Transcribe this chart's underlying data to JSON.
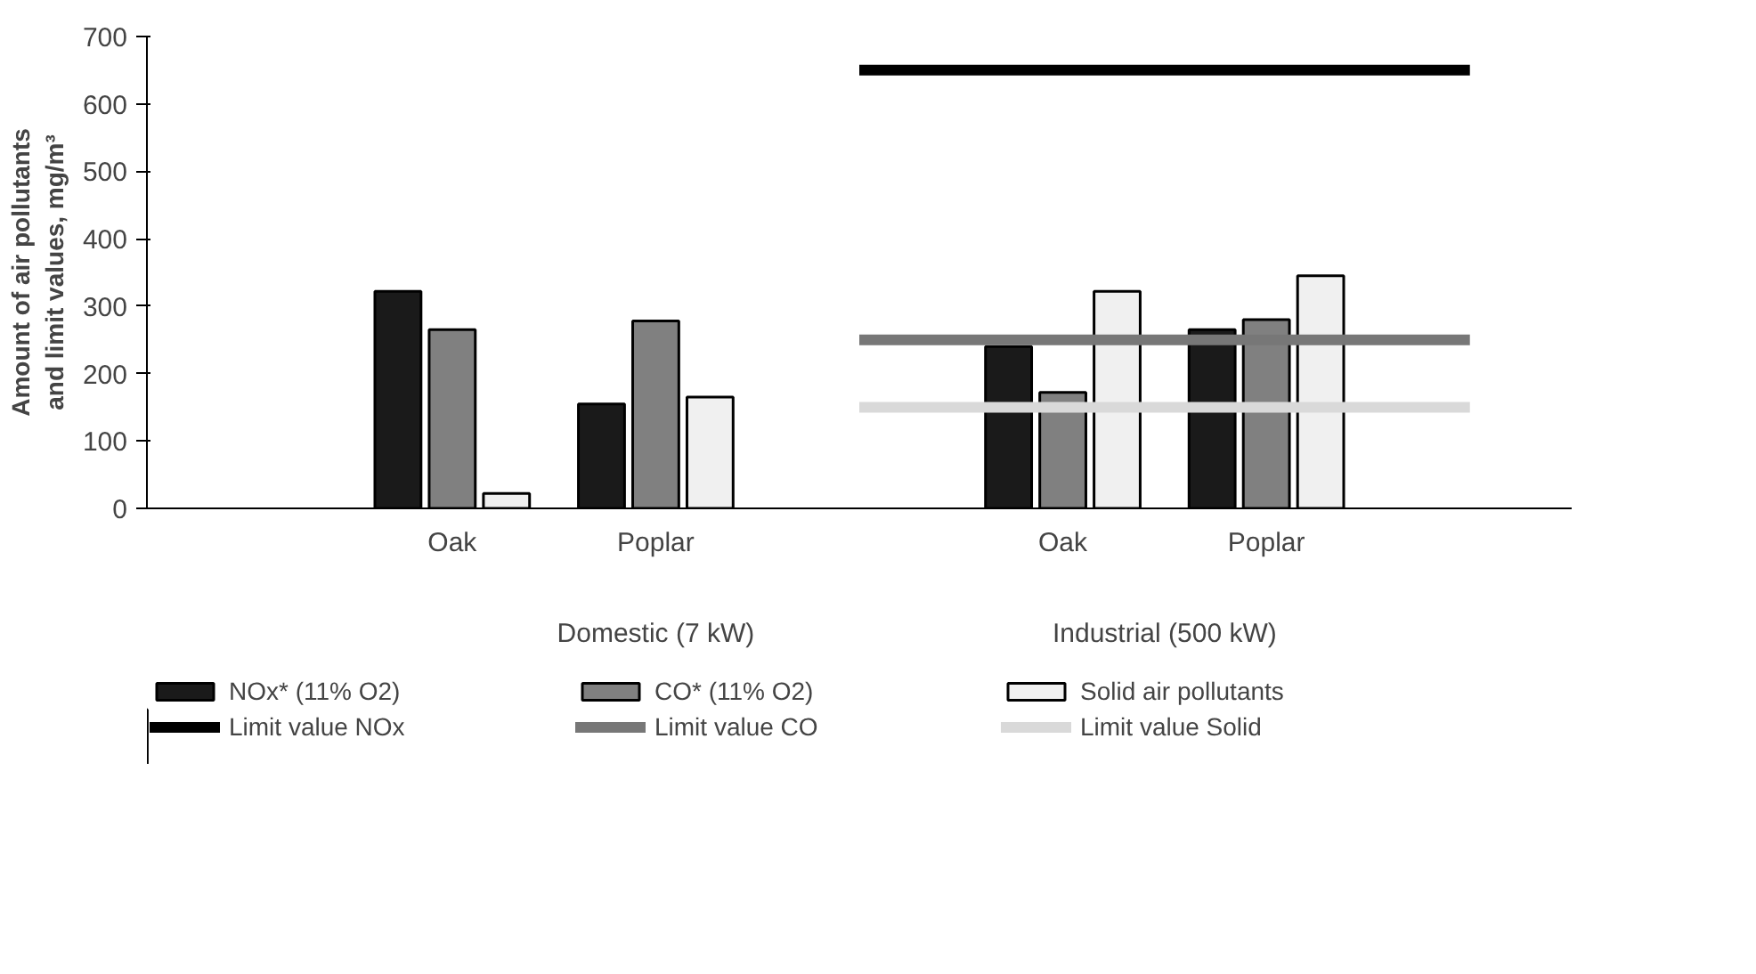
{
  "chart_data": {
    "type": "bar",
    "ylabel": "Amount of air pollutants and limit values, mg/m³",
    "categories": [
      null,
      "Oak",
      "Poplar",
      null,
      "Oak",
      "Poplar",
      null
    ],
    "series": [
      {
        "name": "NOx* (11% O2)",
        "color": "#1a1a1a",
        "values": [
          null,
          322,
          155,
          null,
          240,
          265,
          null
        ]
      },
      {
        "name": "CO* (11% O2)",
        "color": "#808080",
        "values": [
          null,
          265,
          278,
          null,
          172,
          280,
          null
        ]
      },
      {
        "name": "Solid air pollutants",
        "color": "#f0f0f0",
        "values": [
          null,
          22,
          165,
          null,
          322,
          345,
          null
        ]
      },
      {
        "name": "Limit value NOx",
        "type": "line",
        "color": "#000000",
        "values": [
          null,
          null,
          null,
          650,
          650,
          650,
          650
        ]
      },
      {
        "name": "Limit value CO",
        "type": "line",
        "color": "#777777",
        "values": [
          null,
          null,
          null,
          250,
          250,
          250,
          250
        ]
      },
      {
        "name": "Limit value Solid",
        "type": "line",
        "color": "#d9d9d9",
        "values": [
          null,
          null,
          null,
          150,
          150,
          150,
          150
        ]
      }
    ],
    "annotations": [
      "Domestic (7 kW)",
      "Industrial (500 kW)"
    ],
    "ylim": [
      0,
      700
    ],
    "yticks": [
      0,
      100,
      200,
      300,
      400,
      500,
      600,
      700
    ],
    "grid": false,
    "legend": "bottom"
  }
}
